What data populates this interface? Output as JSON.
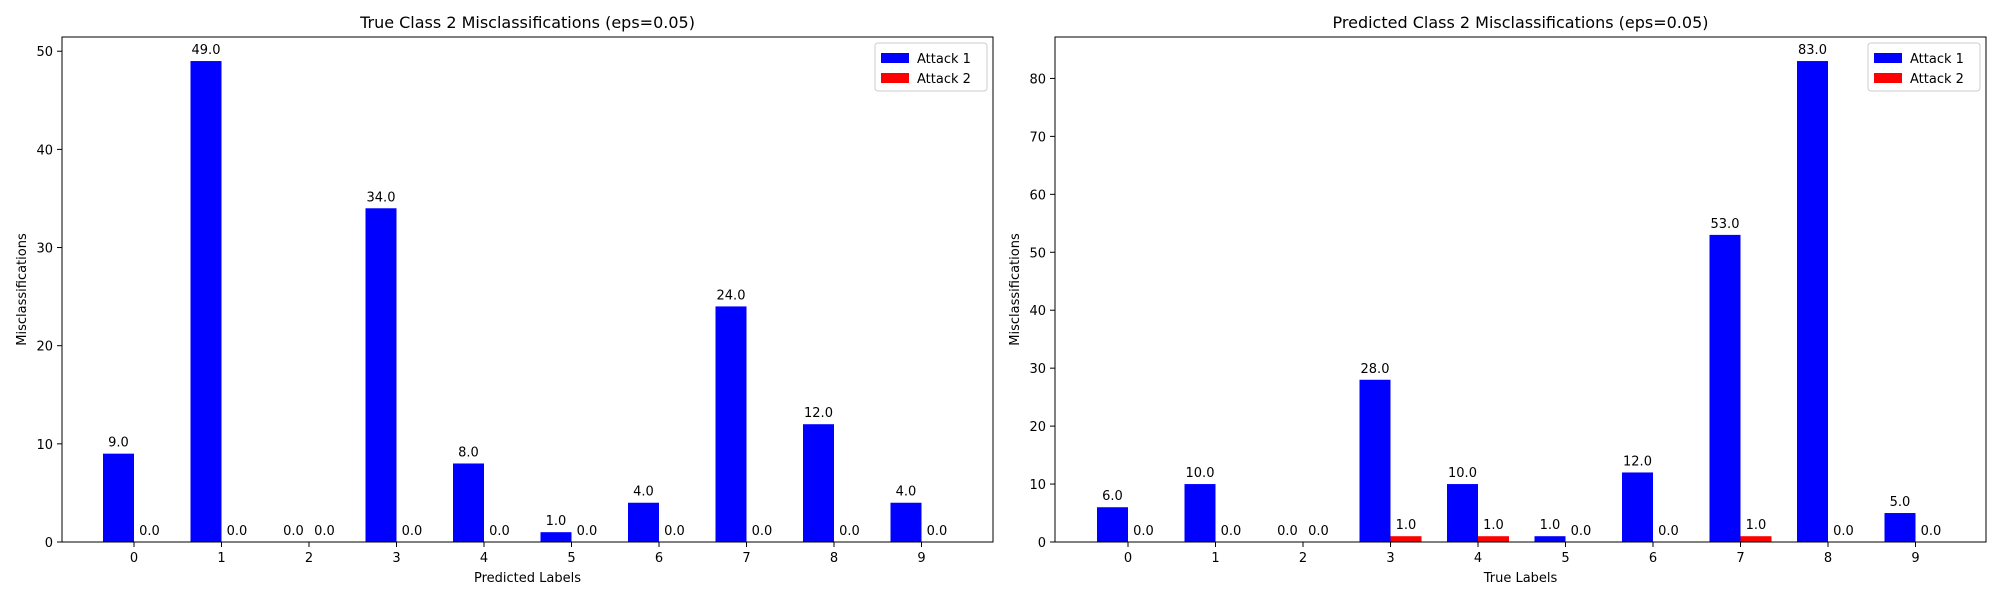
{
  "chart_data": [
    {
      "type": "bar",
      "title": "True Class 2 Misclassifications (eps=0.05)",
      "xlabel": "Predicted Labels",
      "ylabel": "Misclassifications",
      "categories": [
        "0",
        "1",
        "2",
        "3",
        "4",
        "5",
        "6",
        "7",
        "8",
        "9"
      ],
      "ylim": [
        0,
        51.45
      ],
      "yticks": [
        0,
        10,
        20,
        30,
        40,
        50
      ],
      "legend_position": "top-right",
      "grid": false,
      "series": [
        {
          "name": "Attack 1",
          "color": "#0000ff",
          "values": [
            9,
            49,
            0,
            34,
            8,
            1,
            4,
            24,
            12,
            4
          ],
          "labels": [
            "9.0",
            "49.0",
            "0.0",
            "34.0",
            "8.0",
            "1.0",
            "4.0",
            "24.0",
            "12.0",
            "4.0"
          ]
        },
        {
          "name": "Attack 2",
          "color": "#ff0000",
          "values": [
            0,
            0,
            0,
            0,
            0,
            0,
            0,
            0,
            0,
            0
          ],
          "labels": [
            "0.0",
            "0.0",
            "0.0",
            "0.0",
            "0.0",
            "0.0",
            "0.0",
            "0.0",
            "0.0",
            "0.0"
          ]
        }
      ]
    },
    {
      "type": "bar",
      "title": "Predicted Class 2 Misclassifications (eps=0.05)",
      "xlabel": "True Labels",
      "ylabel": "Misclassifications",
      "categories": [
        "0",
        "1",
        "2",
        "3",
        "4",
        "5",
        "6",
        "7",
        "8",
        "9"
      ],
      "ylim": [
        0,
        87.15
      ],
      "yticks": [
        0,
        10,
        20,
        30,
        40,
        50,
        60,
        70,
        80
      ],
      "legend_position": "top-right",
      "grid": false,
      "series": [
        {
          "name": "Attack 1",
          "color": "#0000ff",
          "values": [
            6,
            10,
            0,
            28,
            10,
            1,
            12,
            53,
            83,
            5
          ],
          "labels": [
            "6.0",
            "10.0",
            "0.0",
            "28.0",
            "10.0",
            "1.0",
            "12.0",
            "53.0",
            "83.0",
            "5.0"
          ]
        },
        {
          "name": "Attack 2",
          "color": "#ff0000",
          "values": [
            0,
            0,
            0,
            1,
            1,
            0,
            0,
            1,
            0,
            0
          ],
          "labels": [
            "0.0",
            "0.0",
            "0.0",
            "1.0",
            "1.0",
            "0.0",
            "0.0",
            "1.0",
            "0.0",
            "0.0"
          ]
        }
      ]
    }
  ]
}
